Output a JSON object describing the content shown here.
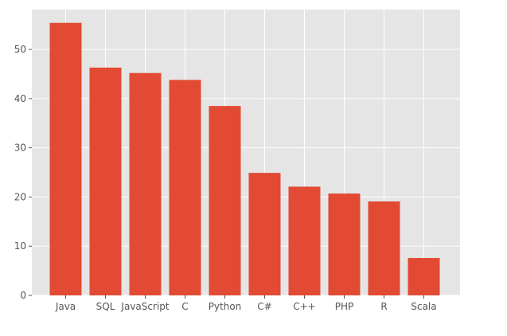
{
  "chart_data": {
    "type": "bar",
    "title": "",
    "xlabel": "",
    "ylabel": "",
    "categories": [
      "Java",
      "SQL",
      "JavaScript",
      "C",
      "Python",
      "C#",
      "C++",
      "PHP",
      "R",
      "Scala"
    ],
    "values": [
      55.4,
      46.3,
      45.2,
      43.8,
      38.5,
      24.9,
      22.1,
      20.7,
      19.1,
      7.6
    ],
    "ylim": [
      0,
      58.1
    ],
    "yticks": [
      0,
      10,
      20,
      30,
      40,
      50
    ],
    "grid": true,
    "colors": {
      "bar": "#e24a33",
      "plot_background": "#e5e5e5",
      "grid": "#ffffff",
      "tick_text": "#555555"
    }
  }
}
